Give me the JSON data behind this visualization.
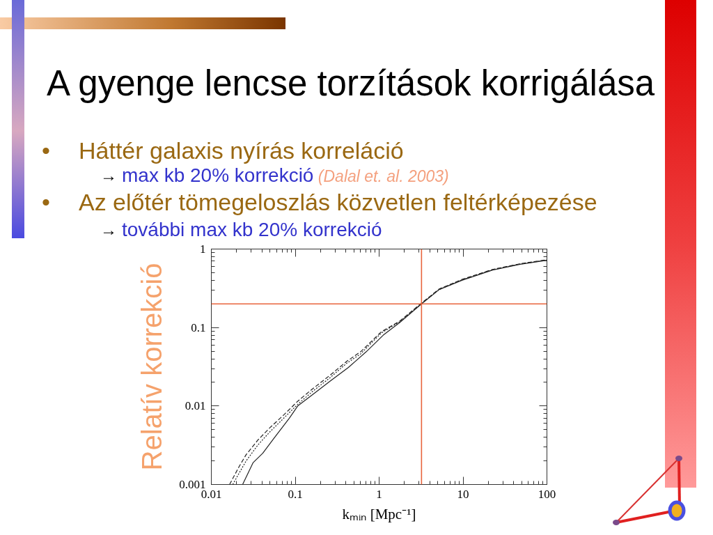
{
  "chart_data": {
    "type": "line",
    "title": "A gyenge lencse torzítások korrigálása",
    "annotations": [
      "• Háttér galaxis nyírás korreláció",
      "→ max kb 20% korrekció",
      "(Dalal et. al. 2003)",
      "• Az előtér tömegeloszlás közvetlen feltérképezése",
      "→ további max kb 20% korrekció"
    ],
    "xlabel": "kₘᵢₙ [Mpc⁻¹]",
    "ylabel": "Relatív korrekció",
    "log": "xy",
    "xlim": [
      0.01,
      100
    ],
    "ylim": [
      0.001,
      1
    ],
    "xticks": [
      0.01,
      0.1,
      1,
      10,
      100
    ],
    "yticks": [
      0.001,
      0.01,
      0.1,
      1
    ],
    "ref_lines": [
      {
        "axis": "x",
        "value": 3.2,
        "color": "#e8643c"
      },
      {
        "axis": "y",
        "value": 0.2,
        "color": "#e8643c"
      }
    ],
    "series": [
      {
        "color": "#222222",
        "line_style": "solid",
        "x": [
          0.0236,
          0.0315,
          0.041,
          0.055,
          0.085,
          0.107,
          0.157,
          0.258,
          0.43,
          0.7,
          1.12,
          1.75,
          3.2,
          5.2,
          9.7,
          22.5,
          48,
          100
        ],
        "values": [
          0.001,
          0.0019,
          0.0025,
          0.0038,
          0.007,
          0.01,
          0.0137,
          0.0206,
          0.031,
          0.049,
          0.08,
          0.115,
          0.2,
          0.305,
          0.4,
          0.54,
          0.64,
          0.72
        ]
      },
      {
        "color": "#222222",
        "line_style": "dashed",
        "x": [
          0.0165,
          0.0215,
          0.026,
          0.036,
          0.05,
          0.073,
          0.107,
          0.157,
          0.258,
          0.41,
          0.6,
          1.06,
          1.75,
          3.2,
          5.2,
          9.7,
          22.5,
          48,
          100
        ],
        "values": [
          0.001,
          0.0017,
          0.0024,
          0.0037,
          0.0053,
          0.0077,
          0.0115,
          0.0162,
          0.0245,
          0.037,
          0.049,
          0.088,
          0.12,
          0.205,
          0.31,
          0.41,
          0.55,
          0.65,
          0.73
        ]
      },
      {
        "color": "#222222",
        "line_style": "dotted",
        "x": [
          0.018,
          0.0215,
          0.026,
          0.036,
          0.05,
          0.073,
          0.107,
          0.157,
          0.258,
          0.41,
          0.6,
          1.06,
          1.75,
          3.2,
          5.2,
          9.7,
          22.5,
          48,
          100
        ],
        "values": [
          0.001,
          0.0014,
          0.002,
          0.0032,
          0.0047,
          0.007,
          0.0105,
          0.015,
          0.0228,
          0.035,
          0.046,
          0.085,
          0.118,
          0.202,
          0.305,
          0.405,
          0.545,
          0.645,
          0.725
        ]
      }
    ]
  }
}
